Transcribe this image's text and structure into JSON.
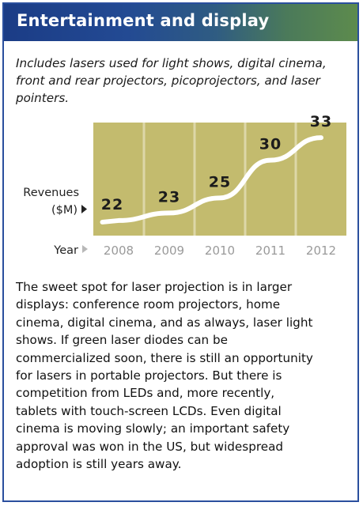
{
  "header": {
    "title": "Entertainment and display"
  },
  "intro": {
    "lines": [
      "Includes lasers used for light shows, digital cinema,",
      "front and rear projectors, picoprojectors, and laser",
      "pointers."
    ]
  },
  "chart_data": {
    "type": "line",
    "x": [
      "2008",
      "2009",
      "2010",
      "2011",
      "2012"
    ],
    "values": [
      22,
      23,
      25,
      30,
      33
    ],
    "ylabel_lines": [
      "Revenues",
      "($M)"
    ],
    "xlabel": "Year",
    "ylim": [
      20,
      35
    ],
    "grid": true,
    "colors": {
      "plot_bg": "#c3bb6e",
      "grid": "#ddd7a8",
      "line": "#ffffff",
      "tick_text": "#9a9a9a",
      "label_text": "#222222"
    }
  },
  "body": {
    "lines": [
      "The sweet spot for laser projection is in larger",
      "displays: conference room projectors, home",
      "cinema, digital cinema, and as always, laser light",
      "shows. If green laser diodes can be",
      "commercialized soon, there is still an opportunity",
      "for lasers in portable projectors. But there is",
      "competition from LEDs and, more recently,",
      "tablets with touch-screen LCDs. Even digital",
      "cinema is moving slowly; an important safety",
      "approval was won in the US, but widespread",
      "adoption is still years away."
    ]
  }
}
